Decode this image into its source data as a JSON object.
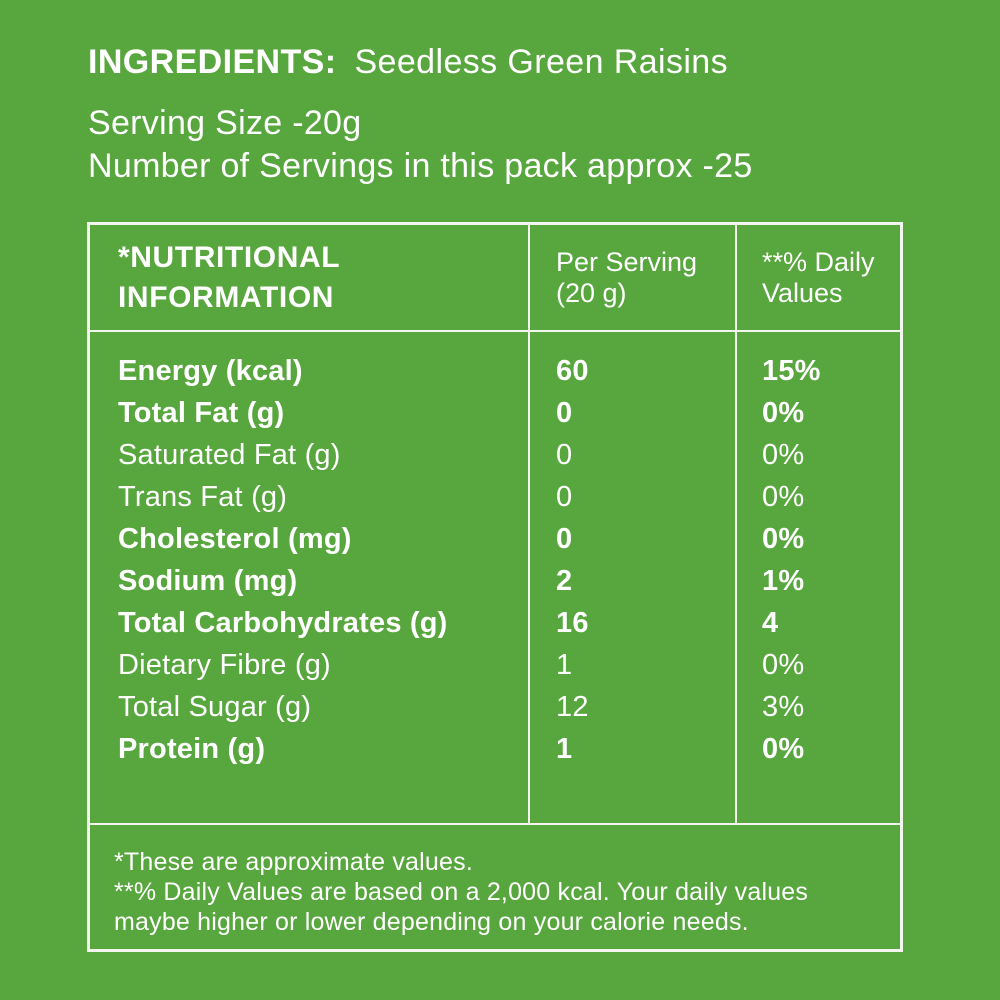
{
  "colors": {
    "background": "#58A63E",
    "text": "#FFFFFF",
    "border": "#F2F6EE"
  },
  "intro": {
    "ingredients_label": "INGREDIENTS:",
    "ingredients_value": "Seedless Green Raisins",
    "serving_size_line": "Serving Size -20g",
    "servings_line": "Number of Servings in this pack approx -25"
  },
  "table": {
    "header": {
      "col1": "*NUTRITIONAL\nINFORMATION",
      "col2": "Per Serving\n(20 g)",
      "col3": "**% Daily\nValues"
    },
    "rows": [
      {
        "label": "Energy (kcal)",
        "per_serving": "60",
        "daily_value": "15%",
        "bold": true
      },
      {
        "label": "Total Fat (g)",
        "per_serving": "0",
        "daily_value": "0%",
        "bold": true
      },
      {
        "label": "Saturated Fat (g)",
        "per_serving": "0",
        "daily_value": "0%",
        "bold": false
      },
      {
        "label": "Trans Fat (g)",
        "per_serving": "0",
        "daily_value": "0%",
        "bold": false
      },
      {
        "label": "Cholesterol (mg)",
        "per_serving": "0",
        "daily_value": "0%",
        "bold": true
      },
      {
        "label": "Sodium (mg)",
        "per_serving": "2",
        "daily_value": "1%",
        "bold": true
      },
      {
        "label": "Total Carbohydrates (g)",
        "per_serving": "16",
        "daily_value": "4",
        "bold": true
      },
      {
        "label": "Dietary Fibre (g)",
        "per_serving": "1",
        "daily_value": "0%",
        "bold": false
      },
      {
        "label": "Total Sugar (g)",
        "per_serving": "12",
        "daily_value": "3%",
        "bold": false
      },
      {
        "label": "Protein (g)",
        "per_serving": "1",
        "daily_value": "0%",
        "bold": true
      }
    ],
    "footnotes": [
      "*These are approximate values.",
      "**% Daily Values are based on a 2,000 kcal. Your daily values maybe higher or lower depending on your calorie needs."
    ]
  }
}
